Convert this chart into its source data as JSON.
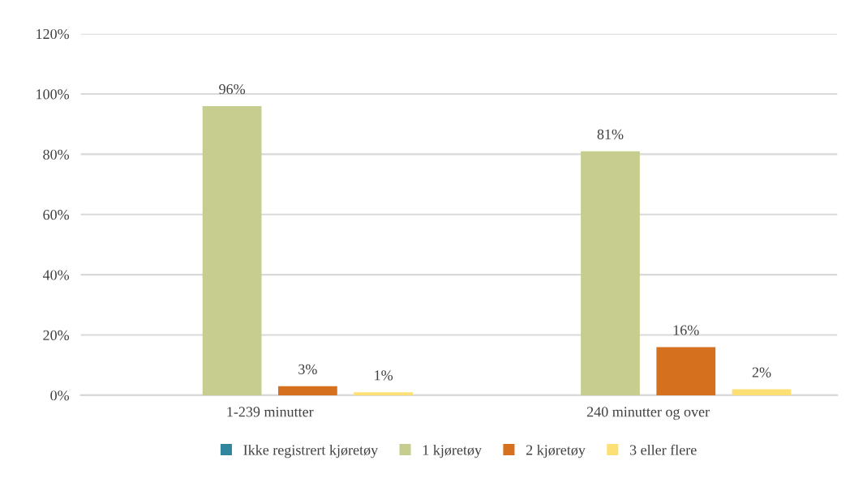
{
  "chart_data": {
    "type": "bar",
    "categories": [
      "1-239 minutter",
      "240 minutter og over"
    ],
    "series": [
      {
        "name": "Ikke registrert kjøretøy",
        "color": "#31859c",
        "values": [
          0,
          0
        ],
        "value_labels": [
          null,
          null
        ]
      },
      {
        "name": "1 kjøretøy",
        "color": "#c6cd8f",
        "values": [
          96,
          81
        ],
        "value_labels": [
          "96%",
          "81%"
        ]
      },
      {
        "name": "2 kjøretøy",
        "color": "#d5711e",
        "values": [
          3,
          16
        ],
        "value_labels": [
          "3%",
          "16%"
        ]
      },
      {
        "name": "3 eller flere",
        "color": "#fde074",
        "values": [
          1,
          2
        ],
        "value_labels": [
          "1%",
          "2%"
        ]
      }
    ],
    "ylim": [
      0,
      120
    ],
    "yticks": [
      {
        "value": 0,
        "label": "0%"
      },
      {
        "value": 20,
        "label": "20%"
      },
      {
        "value": 40,
        "label": "40%"
      },
      {
        "value": 60,
        "label": "60%"
      },
      {
        "value": 80,
        "label": "80%"
      },
      {
        "value": 100,
        "label": "100%"
      },
      {
        "value": 120,
        "label": "120%"
      }
    ],
    "grid": "y",
    "legend": "bottom"
  }
}
